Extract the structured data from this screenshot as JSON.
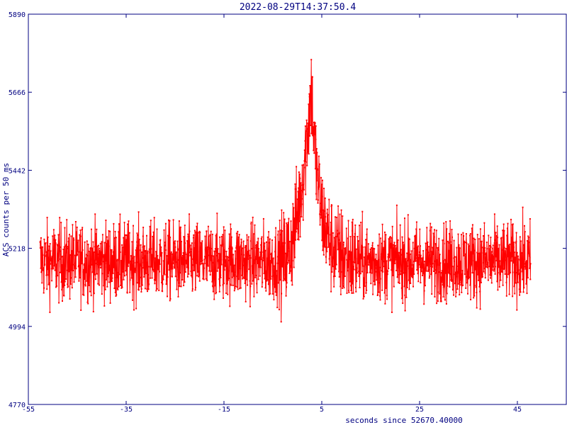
{
  "chart_data": {
    "type": "line",
    "title": "2022-08-29T14:37:50.4",
    "xlabel": "seconds since 52670.40000",
    "ylabel": "ACS counts per 50 ms",
    "xlim": [
      -55,
      55
    ],
    "ylim": [
      4770,
      5890
    ],
    "x_ticks": [
      "-55",
      "-35",
      "-15",
      "5",
      "25",
      "45"
    ],
    "y_ticks": [
      "4770",
      "4994",
      "5218",
      "5442",
      "5666",
      "5890"
    ],
    "x_step": 0.05,
    "x_start": -52.6,
    "x_end": 47.7,
    "baseline": 5180,
    "noise_amp": 55,
    "peak": {
      "x": 2.8,
      "y": 5790,
      "rise_start": -3.5,
      "decay_end": 12
    },
    "colors": {
      "series": "#ff0000",
      "axes": "#000080"
    }
  }
}
